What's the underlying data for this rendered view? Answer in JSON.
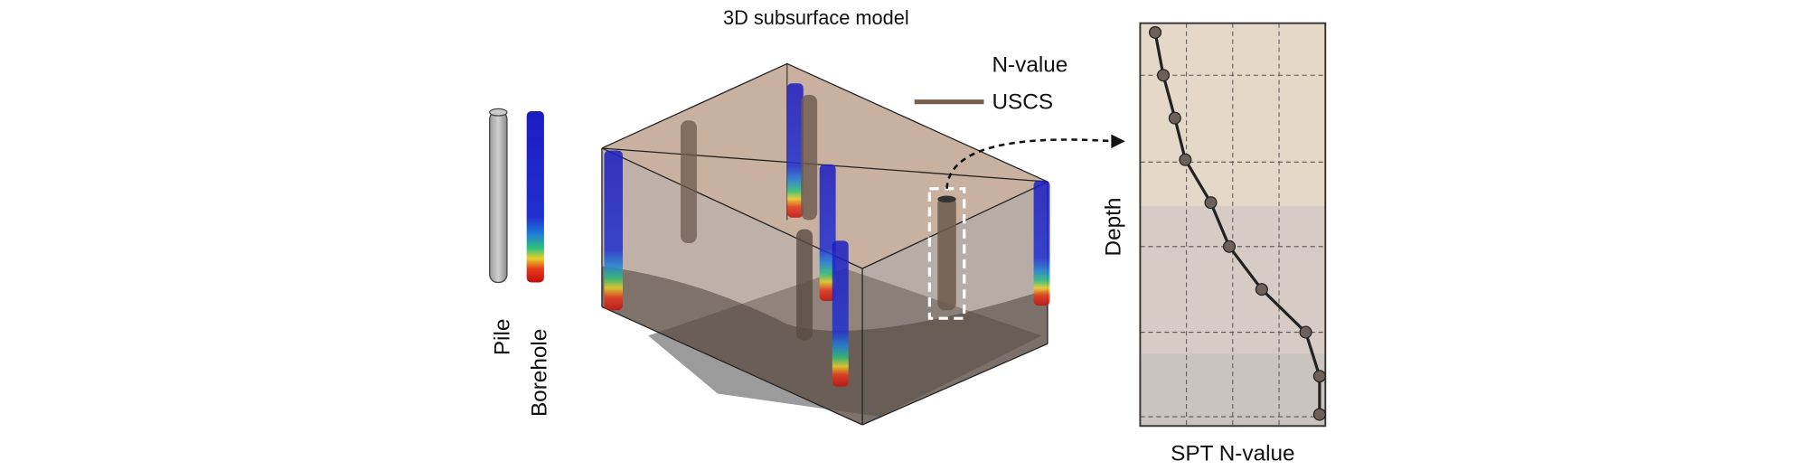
{
  "title": "3D subsurface model",
  "legend": {
    "n_value": "N-value",
    "uscs": "USCS"
  },
  "labels": {
    "pile": "Pile",
    "borehole": "Borehole"
  },
  "profile": {
    "y_label": "Depth",
    "x_label": "SPT N-value"
  }
}
